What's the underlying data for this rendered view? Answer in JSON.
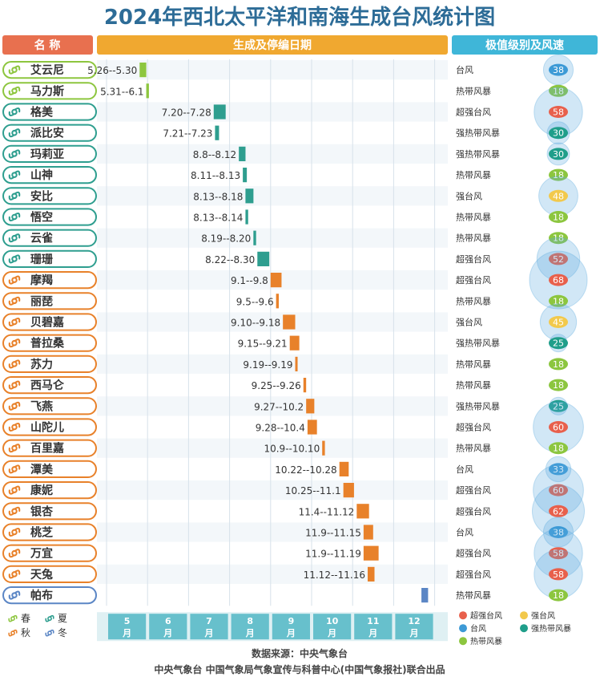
{
  "title": "2024年西北太平洋和南海生成台风统计图",
  "headers": {
    "name": "名 称",
    "dates": "生成及停编日期",
    "level": "极值级别及风速"
  },
  "colors": {
    "spring": "#8dc63f",
    "summer": "#2e9e8f",
    "autumn": "#e8812a",
    "winter": "#5b86c5",
    "header_name": "#e8704f",
    "header_dates": "#f0a830",
    "header_level": "#3fb6d8",
    "title": "#2d6c97"
  },
  "season_legend": [
    {
      "label": "春",
      "season": "spring"
    },
    {
      "label": "夏",
      "season": "summer"
    },
    {
      "label": "秋",
      "season": "autumn"
    },
    {
      "label": "冬",
      "season": "winter"
    }
  ],
  "level_legend": [
    {
      "label": "超强台风",
      "color": "#e8604c"
    },
    {
      "label": "强台风",
      "color": "#f2c94c"
    },
    {
      "label": "台风",
      "color": "#3d9ad6"
    },
    {
      "label": "强热带风暴",
      "color": "#1f9e8a"
    },
    {
      "label": "热带风暴",
      "color": "#8cc63f"
    }
  ],
  "months": [
    "5月",
    "6月",
    "7月",
    "8月",
    "9月",
    "10月",
    "11月",
    "12月"
  ],
  "source": "数据来源：中央气象台",
  "producer": "中央气象台 中国气象局气象宣传与科普中心(中国气象报社)联合出品",
  "chart_data": {
    "type": "bar",
    "subtype": "floating-range",
    "x_unit": "date (2024)",
    "xlim": [
      "2024-05-01",
      "2024-12-31"
    ],
    "series": [
      {
        "name": "艾云尼",
        "season": "spring",
        "start": "2024-05-26",
        "end": "2024-05-30",
        "label": "5.26--5.30",
        "level": "台风",
        "speed": 38,
        "level_color": "#3d9ad6"
      },
      {
        "name": "马力斯",
        "season": "spring",
        "start": "2024-05-31",
        "end": "2024-06-01",
        "label": "5.31--6.1",
        "level": "热带风暴",
        "speed": 18,
        "level_color": "#8cc63f"
      },
      {
        "name": "格美",
        "season": "summer",
        "start": "2024-07-20",
        "end": "2024-07-28",
        "label": "7.20--7.28",
        "level": "超强台风",
        "speed": 58,
        "level_color": "#e8604c"
      },
      {
        "name": "派比安",
        "season": "summer",
        "start": "2024-07-21",
        "end": "2024-07-23",
        "label": "7.21--7.23",
        "level": "强热带风暴",
        "speed": 30,
        "level_color": "#1f9e8a"
      },
      {
        "name": "玛莉亚",
        "season": "summer",
        "start": "2024-08-08",
        "end": "2024-08-12",
        "label": "8.8--8.12",
        "level": "强热带风暴",
        "speed": 30,
        "level_color": "#1f9e8a"
      },
      {
        "name": "山神",
        "season": "summer",
        "start": "2024-08-11",
        "end": "2024-08-13",
        "label": "8.11--8.13",
        "level": "热带风暴",
        "speed": 18,
        "level_color": "#8cc63f"
      },
      {
        "name": "安比",
        "season": "summer",
        "start": "2024-08-13",
        "end": "2024-08-18",
        "label": "8.13--8.18",
        "level": "强台风",
        "speed": 48,
        "level_color": "#f2c94c"
      },
      {
        "name": "悟空",
        "season": "summer",
        "start": "2024-08-13",
        "end": "2024-08-14",
        "label": "8.13--8.14",
        "level": "热带风暴",
        "speed": 18,
        "level_color": "#8cc63f"
      },
      {
        "name": "云雀",
        "season": "summer",
        "start": "2024-08-19",
        "end": "2024-08-20",
        "label": "8.19--8.20",
        "level": "热带风暴",
        "speed": 18,
        "level_color": "#8cc63f"
      },
      {
        "name": "珊珊",
        "season": "summer",
        "start": "2024-08-22",
        "end": "2024-08-30",
        "label": "8.22--8.30",
        "level": "超强台风",
        "speed": 52,
        "level_color": "#e8604c"
      },
      {
        "name": "摩羯",
        "season": "autumn",
        "start": "2024-09-01",
        "end": "2024-09-08",
        "label": "9.1--9.8",
        "level": "超强台风",
        "speed": 68,
        "level_color": "#e8604c"
      },
      {
        "name": "丽琵",
        "season": "autumn",
        "start": "2024-09-05",
        "end": "2024-09-06",
        "label": "9.5--9.6",
        "level": "热带风暴",
        "speed": 18,
        "level_color": "#8cc63f"
      },
      {
        "name": "贝碧嘉",
        "season": "autumn",
        "start": "2024-09-10",
        "end": "2024-09-18",
        "label": "9.10--9.18",
        "level": "强台风",
        "speed": 45,
        "level_color": "#f2c94c"
      },
      {
        "name": "普拉桑",
        "season": "autumn",
        "start": "2024-09-15",
        "end": "2024-09-21",
        "label": "9.15--9.21",
        "level": "强热带风暴",
        "speed": 25,
        "level_color": "#1f9e8a"
      },
      {
        "name": "苏力",
        "season": "autumn",
        "start": "2024-09-19",
        "end": "2024-09-19",
        "label": "9.19--9.19",
        "level": "热带风暴",
        "speed": 18,
        "level_color": "#8cc63f"
      },
      {
        "name": "西马仑",
        "season": "autumn",
        "start": "2024-09-25",
        "end": "2024-09-26",
        "label": "9.25--9.26",
        "level": "热带风暴",
        "speed": 18,
        "level_color": "#8cc63f"
      },
      {
        "name": "飞燕",
        "season": "autumn",
        "start": "2024-09-27",
        "end": "2024-10-02",
        "label": "9.27--10.2",
        "level": "强热带风暴",
        "speed": 25,
        "level_color": "#1f9e8a"
      },
      {
        "name": "山陀儿",
        "season": "autumn",
        "start": "2024-09-28",
        "end": "2024-10-04",
        "label": "9.28--10.4",
        "level": "超强台风",
        "speed": 60,
        "level_color": "#e8604c"
      },
      {
        "name": "百里嘉",
        "season": "autumn",
        "start": "2024-10-09",
        "end": "2024-10-10",
        "label": "10.9--10.10",
        "level": "热带风暴",
        "speed": 18,
        "level_color": "#8cc63f"
      },
      {
        "name": "潭美",
        "season": "autumn",
        "start": "2024-10-22",
        "end": "2024-10-28",
        "label": "10.22--10.28",
        "level": "台风",
        "speed": 33,
        "level_color": "#3d9ad6"
      },
      {
        "name": "康妮",
        "season": "autumn",
        "start": "2024-10-25",
        "end": "2024-11-01",
        "label": "10.25--11.1",
        "level": "超强台风",
        "speed": 60,
        "level_color": "#e8604c"
      },
      {
        "name": "银杏",
        "season": "autumn",
        "start": "2024-11-04",
        "end": "2024-11-12",
        "label": "11.4--11.12",
        "level": "超强台风",
        "speed": 62,
        "level_color": "#e8604c"
      },
      {
        "name": "桃芝",
        "season": "autumn",
        "start": "2024-11-09",
        "end": "2024-11-15",
        "label": "11.9--11.15",
        "level": "台风",
        "speed": 38,
        "level_color": "#3d9ad6"
      },
      {
        "name": "万宜",
        "season": "autumn",
        "start": "2024-11-09",
        "end": "2024-11-19",
        "label": "11.9--11.19",
        "level": "超强台风",
        "speed": 58,
        "level_color": "#e8604c"
      },
      {
        "name": "天兔",
        "season": "autumn",
        "start": "2024-11-12",
        "end": "2024-11-16",
        "label": "11.12--11.16",
        "level": "超强台风",
        "speed": 58,
        "level_color": "#e8604c"
      },
      {
        "name": "帕布",
        "season": "winter",
        "start": "2024-12-22",
        "end": "2024-12-26",
        "label": "",
        "level": "热带风暴",
        "speed": 18,
        "level_color": "#8cc63f"
      }
    ]
  }
}
